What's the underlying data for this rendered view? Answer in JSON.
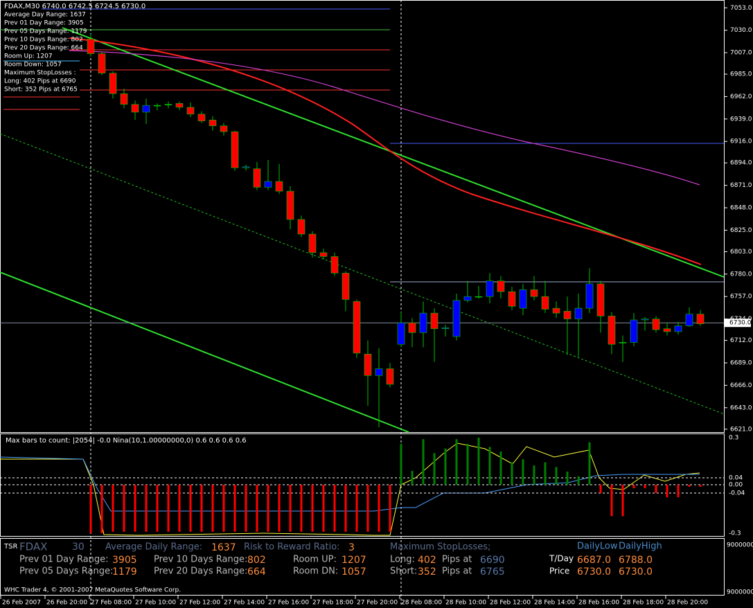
{
  "chart_data": {
    "type": "candlestick",
    "symbol_line": "FDAX,M30  6740.0 6742.5 6724.5 6730.0",
    "up_color": "#0000ff",
    "down_color": "#ff0000",
    "wick_color": "#00c000",
    "ylim": [
      6618,
      7061
    ],
    "yticks": [
      {
        "value": 7053,
        "label": "7053.0"
      },
      {
        "value": 7030,
        "label": "7030.0"
      },
      {
        "value": 7007,
        "label": "7007.0"
      },
      {
        "value": 6985,
        "label": "6985.0"
      },
      {
        "value": 6962,
        "label": "6962.0"
      },
      {
        "value": 6939,
        "label": "6939.0"
      },
      {
        "value": 6916,
        "label": "6916.0"
      },
      {
        "value": 6894,
        "label": "6894.0"
      },
      {
        "value": 6871,
        "label": "6871.0"
      },
      {
        "value": 6848,
        "label": "6848.0"
      },
      {
        "value": 6825,
        "label": "6825.0"
      },
      {
        "value": 6803,
        "label": "6803.0"
      },
      {
        "value": 6780,
        "label": "6780.0"
      },
      {
        "value": 6757,
        "label": "6757.0"
      },
      {
        "value": 6734,
        "label": "6734.0"
      },
      {
        "value": 6712,
        "label": "6712.0"
      },
      {
        "value": 6689,
        "label": "6689.0"
      },
      {
        "value": 6666,
        "label": "6666.0"
      },
      {
        "value": 6643,
        "label": "6643.0"
      },
      {
        "value": 6621,
        "label": "6621.0"
      }
    ],
    "current_price": {
      "value": 6730,
      "label": "6730.0"
    },
    "x_labels": [
      "26 Feb 2007",
      "26 Feb 20:00",
      "27 Feb 08:00",
      "27 Feb 10:00",
      "27 Feb 12:00",
      "27 Feb 14:00",
      "27 Feb 16:00",
      "27 Feb 18:00",
      "27 Feb 20:00",
      "28 Feb 08:00",
      "28 Feb 10:00",
      "28 Feb 12:00",
      "28 Feb 14:00",
      "28 Feb 16:00",
      "28 Feb 18:00",
      "28 Feb 20:00"
    ],
    "candles": [
      {
        "open": 7021,
        "high": 7026,
        "low": 7003,
        "close": 7006
      },
      {
        "open": 7006,
        "high": 7008,
        "low": 6984,
        "close": 6986
      },
      {
        "open": 6986,
        "high": 6988,
        "low": 6960,
        "close": 6965
      },
      {
        "open": 6965,
        "high": 6970,
        "low": 6950,
        "close": 6954
      },
      {
        "open": 6954,
        "high": 6958,
        "low": 6938,
        "close": 6946
      },
      {
        "open": 6946,
        "high": 6960,
        "low": 6934,
        "close": 6953
      },
      {
        "open": 6953,
        "high": 6955,
        "low": 6948,
        "close": 6953
      },
      {
        "open": 6954,
        "high": 6957,
        "low": 6950,
        "close": 6954
      },
      {
        "open": 6955,
        "high": 6957,
        "low": 6948,
        "close": 6951
      },
      {
        "open": 6951,
        "high": 6956,
        "low": 6941,
        "close": 6944
      },
      {
        "open": 6944,
        "high": 6947,
        "low": 6935,
        "close": 6937
      },
      {
        "open": 6938,
        "high": 6942,
        "low": 6927,
        "close": 6932
      },
      {
        "open": 6932,
        "high": 6935,
        "low": 6922,
        "close": 6926
      },
      {
        "open": 6926,
        "high": 6927,
        "low": 6886,
        "close": 6889
      },
      {
        "open": 6889,
        "high": 6892,
        "low": 6886,
        "close": 6890
      },
      {
        "open": 6888,
        "high": 6895,
        "low": 6866,
        "close": 6869
      },
      {
        "open": 6869,
        "high": 6897,
        "low": 6866,
        "close": 6875
      },
      {
        "open": 6875,
        "high": 6893,
        "low": 6862,
        "close": 6865
      },
      {
        "open": 6865,
        "high": 6870,
        "low": 6826,
        "close": 6836
      },
      {
        "open": 6836,
        "high": 6840,
        "low": 6818,
        "close": 6821
      },
      {
        "open": 6821,
        "high": 6824,
        "low": 6797,
        "close": 6802
      },
      {
        "open": 6802,
        "high": 6806,
        "low": 6795,
        "close": 6798
      },
      {
        "open": 6798,
        "high": 6802,
        "low": 6778,
        "close": 6781
      },
      {
        "open": 6781,
        "high": 6783,
        "low": 6742,
        "close": 6754
      },
      {
        "open": 6752,
        "high": 6754,
        "low": 6694,
        "close": 6699
      },
      {
        "open": 6698,
        "high": 6712,
        "low": 6645,
        "close": 6676
      },
      {
        "open": 6676,
        "high": 6704,
        "low": 6623,
        "close": 6683
      },
      {
        "open": 6683,
        "high": 6689,
        "low": 6664,
        "close": 6667
      },
      {
        "open": 6708,
        "high": 6741,
        "low": 6705,
        "close": 6730
      },
      {
        "open": 6730,
        "high": 6735,
        "low": 6705,
        "close": 6720
      },
      {
        "open": 6720,
        "high": 6752,
        "low": 6705,
        "close": 6740
      },
      {
        "open": 6740,
        "high": 6745,
        "low": 6690,
        "close": 6724
      },
      {
        "open": 6724,
        "high": 6728,
        "low": 6716,
        "close": 6725
      },
      {
        "open": 6716,
        "high": 6760,
        "low": 6712,
        "close": 6753
      },
      {
        "open": 6753,
        "high": 6773,
        "low": 6751,
        "close": 6757
      },
      {
        "open": 6757,
        "high": 6768,
        "low": 6755,
        "close": 6757
      },
      {
        "open": 6757,
        "high": 6781,
        "low": 6750,
        "close": 6773
      },
      {
        "open": 6773,
        "high": 6778,
        "low": 6755,
        "close": 6762
      },
      {
        "open": 6762,
        "high": 6767,
        "low": 6743,
        "close": 6747
      },
      {
        "open": 6745,
        "high": 6770,
        "low": 6738,
        "close": 6764
      },
      {
        "open": 6764,
        "high": 6778,
        "low": 6753,
        "close": 6757
      },
      {
        "open": 6757,
        "high": 6773,
        "low": 6740,
        "close": 6744
      },
      {
        "open": 6745,
        "high": 6752,
        "low": 6735,
        "close": 6740
      },
      {
        "open": 6742,
        "high": 6757,
        "low": 6697,
        "close": 6734
      },
      {
        "open": 6734,
        "high": 6760,
        "low": 6695,
        "close": 6745
      },
      {
        "open": 6745,
        "high": 6786,
        "low": 6740,
        "close": 6770
      },
      {
        "open": 6770,
        "high": 6773,
        "low": 6720,
        "close": 6737
      },
      {
        "open": 6737,
        "high": 6741,
        "low": 6698,
        "close": 6708
      },
      {
        "open": 6710,
        "high": 6717,
        "low": 6690,
        "close": 6710
      },
      {
        "open": 6710,
        "high": 6740,
        "low": 6706,
        "close": 6733
      },
      {
        "open": 6733,
        "high": 6736,
        "low": 6722,
        "close": 6734
      },
      {
        "open": 6734,
        "high": 6737,
        "low": 6720,
        "close": 6723
      },
      {
        "open": 6724,
        "high": 6730,
        "low": 6717,
        "close": 6721
      },
      {
        "open": 6721,
        "high": 6731,
        "low": 6718,
        "close": 6727
      },
      {
        "open": 6727,
        "high": 6746,
        "low": 6726,
        "close": 6739
      },
      {
        "open": 6739,
        "high": 6743,
        "low": 6727,
        "close": 6729
      }
    ]
  },
  "overlay_lines": [
    "Average Day  Range: 1637",
    "Prev 01  Day  Range: 3905",
    "Prev 05  Days Range: 1179",
    "Prev 10  Days Range: 802",
    "Prev 20  Days Range: 664",
    "Room Up:     1207",
    "Room Down: 1057",
    "Maximum StopLosses :",
    "Long:  402 Pips at 6690",
    "Short: 352 Pips at 6765"
  ],
  "indicator": {
    "caption": "Max bars to count: |2054|  -0.0  Nina(10,1.00000000,0) 0.6 0.6 0.6 0.6",
    "positive_color": "#008000",
    "negative_color": "#ff0000",
    "yticks": [
      0.3,
      0.04,
      {
        "value": 0,
        "label": "0.00"
      },
      -0.04,
      -0.3
    ],
    "values": [
      -0.3,
      -0.3,
      -0.29,
      -0.29,
      -0.29,
      -0.29,
      -0.29,
      -0.29,
      -0.29,
      -0.29,
      -0.29,
      -0.29,
      -0.29,
      -0.29,
      -0.29,
      -0.29,
      -0.29,
      -0.29,
      -0.29,
      -0.29,
      -0.29,
      -0.29,
      -0.29,
      -0.29,
      -0.29,
      -0.29,
      -0.29,
      -0.29,
      0.26,
      0.085,
      0.29,
      0.2,
      0.23,
      0.29,
      0.26,
      0.3,
      0.24,
      0.21,
      0.14,
      0.16,
      0.12,
      0.14,
      0.11,
      0.08,
      0.05,
      0.27,
      -0.04,
      -0.19,
      -0.19,
      -0.017,
      -0.017,
      -0.04,
      -0.067,
      -0.067,
      -0.01,
      -0.01
    ]
  },
  "info_panel": {
    "tag": "TSR",
    "symbol": "FDAX",
    "period": "30",
    "avg_label": "Average Daily Range:",
    "avg_value": "1637",
    "rr_label": "Risk to Reward Ratio:",
    "rr_value": "3",
    "sl_label": "Maximum StopLosses;",
    "daily_low": "DailyLow",
    "daily_high": "DailyHigh",
    "p01_label": "Prev 01 Day Range:",
    "p01_value": "3905",
    "p10_label": "Prev 10 Days Range:",
    "p10_value": "802",
    "up_label": "Room UP:",
    "up_value": "1207",
    "long_label": "Long:",
    "long_value": "402",
    "pips1": "Pips at",
    "long_at": "6690",
    "tday": "T/Day",
    "tday_low": "6687.0",
    "tday_high": "6788.0",
    "p05_label": "Prev 05 Days Range:",
    "p05_value": "1179",
    "p20_label": "Prev 20 Days Range:",
    "p20_value": "664",
    "dn_label": "Room DN:",
    "dn_value": "1057",
    "short_label": "Short:",
    "short_value": "352",
    "pips2": "Pips at",
    "short_at": "6765",
    "price": "Price",
    "price_low": "6730.0",
    "price_high": "6730.0",
    "scale_top": "9000000",
    "scale_bottom": "9000000"
  },
  "footer": "WHC Trader 4, © 2001-2007 MetaQuotes Software Corp."
}
